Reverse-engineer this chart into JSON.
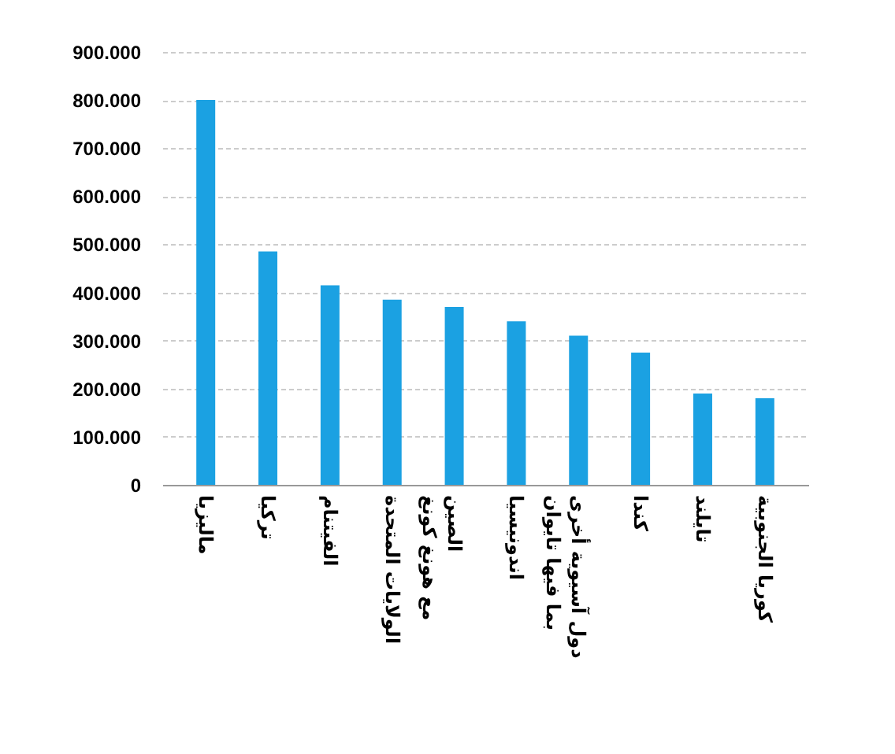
{
  "chart_data": {
    "type": "bar",
    "categories": [
      "ماليزيا",
      "تركيا",
      "الفيتنام",
      "الولايات المتحدة",
      "الصين\nمع هونغ كونغ",
      "اندونيسيا",
      "دول آسيوية أخرى\nبما فيها تايوان",
      "كندا",
      "تايلند",
      "كوريا الجنوبية"
    ],
    "values": [
      800000,
      485000,
      415000,
      385000,
      370000,
      340000,
      310000,
      275000,
      190000,
      180000
    ],
    "color": "#1ba1e2",
    "ylim": [
      0,
      900000
    ],
    "yticks": [
      {
        "value": 0,
        "label": "0"
      },
      {
        "value": 100000,
        "label": "100.000"
      },
      {
        "value": 200000,
        "label": "200.000"
      },
      {
        "value": 300000,
        "label": "300.000"
      },
      {
        "value": 400000,
        "label": "400.000"
      },
      {
        "value": 500000,
        "label": "500.000"
      },
      {
        "value": 600000,
        "label": "600.000"
      },
      {
        "value": 700000,
        "label": "700.000"
      },
      {
        "value": 800000,
        "label": "800.000"
      },
      {
        "value": 900000,
        "label": "900.000"
      }
    ],
    "grid": "y"
  }
}
